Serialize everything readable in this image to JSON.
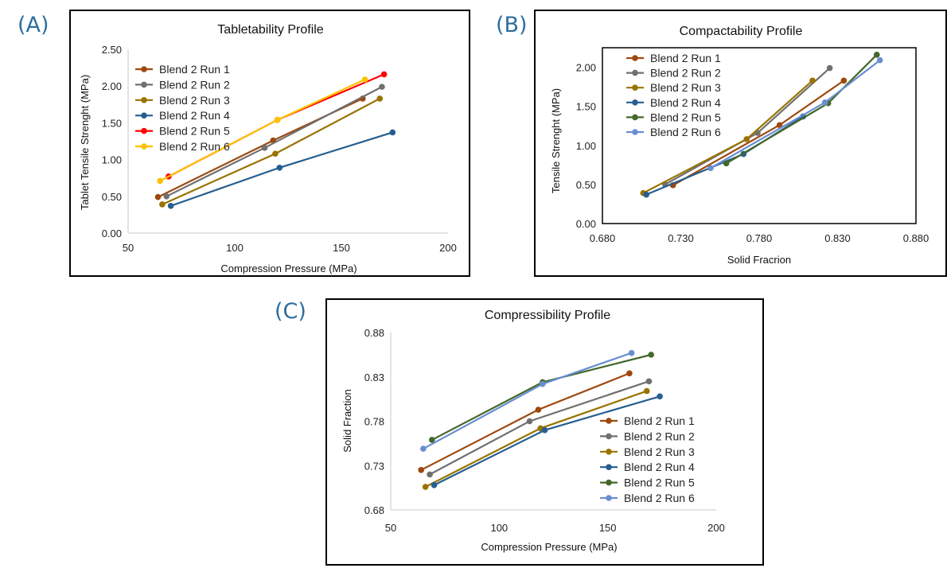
{
  "panels": {
    "a": {
      "tag": "(A)"
    },
    "b": {
      "tag": "(B)"
    },
    "c": {
      "tag": "(C)"
    }
  },
  "series_colors": [
    "#9E480E",
    "#707070",
    "#997300",
    "#255E91",
    "#43682B",
    "#698ED0"
  ],
  "extra_colors": {
    "run5_tabletability": "#FF0000",
    "run6_tabletability": "#FFC000"
  },
  "chart_data": [
    {
      "id": "a",
      "type": "line",
      "title": "Tabletability Profile",
      "xlabel": "Compression Pressure (MPa)",
      "ylabel": "Tablet Tensile Strenght (MPa)",
      "xlim": [
        50,
        200
      ],
      "ylim": [
        0,
        2.5
      ],
      "x_ticks": [
        "50",
        "100",
        "150",
        "200"
      ],
      "y_ticks": [
        "0.00",
        "0.50",
        "1.00",
        "1.50",
        "2.00",
        "2.50"
      ],
      "grid": false,
      "legend": "top-left",
      "series": [
        {
          "name": "Blend 2 Run 1",
          "color": "#9E480E",
          "x": [
            64,
            118,
            160
          ],
          "y": [
            0.49,
            1.26,
            1.83
          ]
        },
        {
          "name": "Blend 2 Run 2",
          "color": "#707070",
          "x": [
            68,
            114,
            169
          ],
          "y": [
            0.5,
            1.16,
            1.99
          ]
        },
        {
          "name": "Blend 2 Run 3",
          "color": "#997300",
          "x": [
            66,
            119,
            168
          ],
          "y": [
            0.39,
            1.08,
            1.83
          ]
        },
        {
          "name": "Blend 2 Run 4",
          "color": "#255E91",
          "x": [
            70,
            121,
            174
          ],
          "y": [
            0.37,
            0.89,
            1.37
          ]
        },
        {
          "name": "Blend 2 Run 5",
          "color": "#FF0000",
          "x": [
            69,
            120,
            170
          ],
          "y": [
            0.77,
            1.54,
            2.16
          ]
        },
        {
          "name": "Blend 2 Run 6",
          "color": "#FFC000",
          "x": [
            65,
            120,
            161
          ],
          "y": [
            0.71,
            1.54,
            2.09
          ]
        }
      ]
    },
    {
      "id": "b",
      "type": "line",
      "title": "Compactability Profile",
      "xlabel": "Solid Fracrion",
      "ylabel": "Tensile Strenght (MPa)",
      "xlim": [
        0.68,
        0.88
      ],
      "ylim": [
        0,
        2.25
      ],
      "x_ticks": [
        "0.680",
        "0.730",
        "0.780",
        "0.830",
        "0.880"
      ],
      "y_ticks": [
        "0.00",
        "0.50",
        "1.00",
        "1.50",
        "2.00"
      ],
      "grid": false,
      "legend": "top-left",
      "series": [
        {
          "name": "Blend 2 Run 1",
          "color": "#9E480E",
          "x": [
            0.725,
            0.793,
            0.834
          ],
          "y": [
            0.49,
            1.26,
            1.83
          ]
        },
        {
          "name": "Blend 2 Run 2",
          "color": "#707070",
          "x": [
            0.72,
            0.779,
            0.825
          ],
          "y": [
            0.5,
            1.16,
            1.99
          ]
        },
        {
          "name": "Blend 2 Run 3",
          "color": "#997300",
          "x": [
            0.706,
            0.772,
            0.814
          ],
          "y": [
            0.39,
            1.08,
            1.83
          ]
        },
        {
          "name": "Blend 2 Run 4",
          "color": "#255E91",
          "x": [
            0.708,
            0.77,
            0.808
          ],
          "y": [
            0.37,
            0.89,
            1.37
          ]
        },
        {
          "name": "Blend 2 Run 5",
          "color": "#43682B",
          "x": [
            0.759,
            0.824,
            0.855
          ],
          "y": [
            0.77,
            1.54,
            2.16
          ]
        },
        {
          "name": "Blend 2 Run 6",
          "color": "#698ED0",
          "x": [
            0.749,
            0.822,
            0.857
          ],
          "y": [
            0.71,
            1.55,
            2.09
          ]
        }
      ]
    },
    {
      "id": "c",
      "type": "line",
      "title": "Compressibility Profile",
      "xlabel": "Compression Pressure (MPa)",
      "ylabel": "Solid Fraction",
      "xlim": [
        50,
        200
      ],
      "ylim": [
        0.68,
        0.88
      ],
      "x_ticks": [
        "50",
        "100",
        "150",
        "200"
      ],
      "y_ticks": [
        "0.68",
        "0.73",
        "0.78",
        "0.83",
        "0.88"
      ],
      "grid": false,
      "legend": "bottom-right",
      "series": [
        {
          "name": "Blend 2 Run 1",
          "color": "#9E480E",
          "x": [
            64,
            118,
            160
          ],
          "y": [
            0.725,
            0.793,
            0.834
          ]
        },
        {
          "name": "Blend 2 Run 2",
          "color": "#707070",
          "x": [
            68,
            114,
            169
          ],
          "y": [
            0.72,
            0.78,
            0.825
          ]
        },
        {
          "name": "Blend 2 Run 3",
          "color": "#997300",
          "x": [
            66,
            119,
            168
          ],
          "y": [
            0.706,
            0.772,
            0.814
          ]
        },
        {
          "name": "Blend 2 Run 4",
          "color": "#255E91",
          "x": [
            70,
            121,
            174
          ],
          "y": [
            0.708,
            0.77,
            0.808
          ]
        },
        {
          "name": "Blend 2 Run 5",
          "color": "#43682B",
          "x": [
            69,
            120,
            170
          ],
          "y": [
            0.759,
            0.824,
            0.855
          ]
        },
        {
          "name": "Blend 2 Run 6",
          "color": "#698ED0",
          "x": [
            65,
            120,
            161
          ],
          "y": [
            0.749,
            0.822,
            0.857
          ]
        }
      ]
    }
  ]
}
